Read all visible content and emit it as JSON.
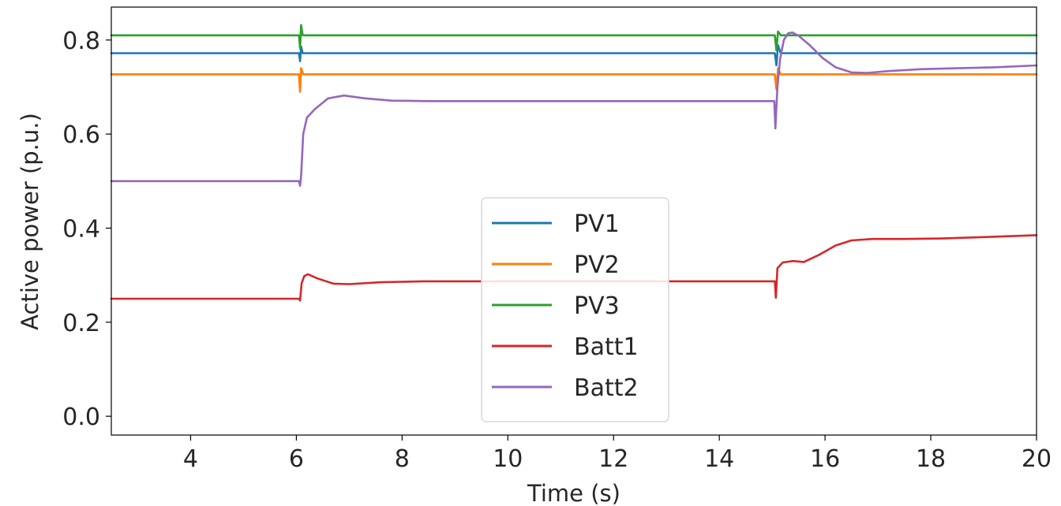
{
  "chart_data": {
    "type": "line",
    "title": "",
    "xlabel": "Time (s)",
    "ylabel": "Active power (p.u.)",
    "xlim": [
      2.5,
      20
    ],
    "ylim": [
      -0.04,
      0.87
    ],
    "x_ticks": [
      4,
      6,
      8,
      10,
      12,
      14,
      16,
      18,
      20
    ],
    "y_ticks": [
      0.0,
      0.2,
      0.4,
      0.6,
      0.8
    ],
    "x_tick_labels": [
      "4",
      "6",
      "8",
      "10",
      "12",
      "14",
      "16",
      "18",
      "20"
    ],
    "y_tick_labels": [
      "0.0",
      "0.2",
      "0.4",
      "0.6",
      "0.8"
    ],
    "grid": false,
    "legend_position": "lower-center",
    "series": [
      {
        "name": "PV1",
        "color": "#1f77b4",
        "points": [
          [
            2.5,
            0.772
          ],
          [
            6.05,
            0.772
          ],
          [
            6.07,
            0.755
          ],
          [
            6.09,
            0.786
          ],
          [
            6.12,
            0.772
          ],
          [
            15.05,
            0.772
          ],
          [
            15.08,
            0.746
          ],
          [
            15.11,
            0.789
          ],
          [
            15.16,
            0.772
          ],
          [
            20,
            0.772
          ]
        ]
      },
      {
        "name": "PV2",
        "color": "#ff7f0e",
        "points": [
          [
            2.5,
            0.727
          ],
          [
            6.05,
            0.727
          ],
          [
            6.07,
            0.69
          ],
          [
            6.09,
            0.74
          ],
          [
            6.13,
            0.727
          ],
          [
            15.05,
            0.727
          ],
          [
            15.08,
            0.695
          ],
          [
            15.11,
            0.74
          ],
          [
            15.16,
            0.727
          ],
          [
            20,
            0.727
          ]
        ]
      },
      {
        "name": "PV3",
        "color": "#2ca02c",
        "points": [
          [
            2.5,
            0.81
          ],
          [
            6.05,
            0.81
          ],
          [
            6.07,
            0.782
          ],
          [
            6.09,
            0.832
          ],
          [
            6.12,
            0.81
          ],
          [
            15.05,
            0.81
          ],
          [
            15.08,
            0.778
          ],
          [
            15.11,
            0.818
          ],
          [
            15.16,
            0.81
          ],
          [
            20,
            0.81
          ]
        ]
      },
      {
        "name": "Batt1",
        "color": "#d62728",
        "points": [
          [
            2.5,
            0.25
          ],
          [
            6.05,
            0.25
          ],
          [
            6.07,
            0.246
          ],
          [
            6.1,
            0.283
          ],
          [
            6.15,
            0.298
          ],
          [
            6.22,
            0.302
          ],
          [
            6.4,
            0.293
          ],
          [
            6.7,
            0.282
          ],
          [
            7.0,
            0.281
          ],
          [
            7.6,
            0.285
          ],
          [
            8.4,
            0.287
          ],
          [
            10,
            0.287
          ],
          [
            12,
            0.287
          ],
          [
            15.05,
            0.287
          ],
          [
            15.07,
            0.252
          ],
          [
            15.1,
            0.315
          ],
          [
            15.2,
            0.327
          ],
          [
            15.4,
            0.33
          ],
          [
            15.6,
            0.328
          ],
          [
            15.9,
            0.344
          ],
          [
            16.2,
            0.363
          ],
          [
            16.5,
            0.374
          ],
          [
            16.9,
            0.377
          ],
          [
            17.5,
            0.377
          ],
          [
            18.2,
            0.378
          ],
          [
            19,
            0.381
          ],
          [
            20,
            0.385
          ]
        ]
      },
      {
        "name": "Batt2",
        "color": "#9467bd",
        "points": [
          [
            2.5,
            0.5
          ],
          [
            6.05,
            0.5
          ],
          [
            6.07,
            0.49
          ],
          [
            6.09,
            0.51
          ],
          [
            6.13,
            0.6
          ],
          [
            6.2,
            0.635
          ],
          [
            6.35,
            0.653
          ],
          [
            6.6,
            0.676
          ],
          [
            6.9,
            0.682
          ],
          [
            7.3,
            0.676
          ],
          [
            7.8,
            0.671
          ],
          [
            8.5,
            0.67
          ],
          [
            10,
            0.67
          ],
          [
            12,
            0.67
          ],
          [
            15.04,
            0.67
          ],
          [
            15.06,
            0.612
          ],
          [
            15.1,
            0.7
          ],
          [
            15.15,
            0.76
          ],
          [
            15.22,
            0.8
          ],
          [
            15.3,
            0.814
          ],
          [
            15.38,
            0.816
          ],
          [
            15.5,
            0.809
          ],
          [
            15.7,
            0.79
          ],
          [
            15.95,
            0.762
          ],
          [
            16.2,
            0.742
          ],
          [
            16.5,
            0.731
          ],
          [
            16.8,
            0.73
          ],
          [
            17.2,
            0.734
          ],
          [
            17.8,
            0.738
          ],
          [
            18.5,
            0.74
          ],
          [
            19.2,
            0.742
          ],
          [
            20,
            0.746
          ]
        ]
      }
    ]
  }
}
